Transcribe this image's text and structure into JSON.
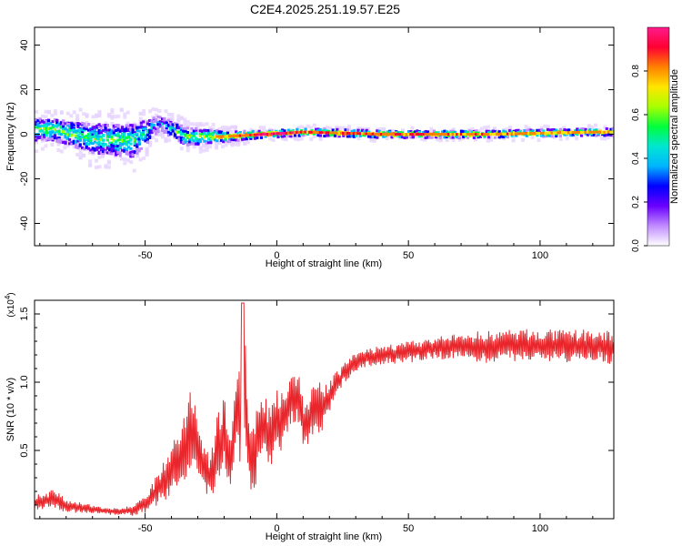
{
  "title": "C2E4.2025.251.19.57.E25",
  "colors": {
    "line": "#e8262b",
    "axis": "#000000",
    "colormap": [
      "#ffffff",
      "#c08bff",
      "#6a00ff",
      "#0000ff",
      "#00b4ff",
      "#00e6d2",
      "#00ff3c",
      "#a8ff00",
      "#ffe600",
      "#ff8000",
      "#ff0033",
      "#ff1a8c"
    ]
  },
  "chart_data": [
    {
      "type": "heatmap",
      "title": "C2E4.2025.251.19.57.E25",
      "xlabel": "Height of straight line (km)",
      "ylabel": "Frequency (Hz)",
      "xlim": [
        -92,
        128
      ],
      "ylim": [
        -50,
        48
      ],
      "xticks": [
        -50,
        0,
        50,
        100
      ],
      "xtick_labels": [
        "-50",
        "0",
        "50",
        "100"
      ],
      "yticks": [
        -40,
        -20,
        0,
        20,
        40
      ],
      "ytick_labels": [
        "-40",
        "-20",
        "0",
        "20",
        "40"
      ],
      "colorbar": {
        "label": "Normalized spectral amplitude",
        "range": [
          0,
          1
        ],
        "ticks": [
          0.0,
          0.2,
          0.4,
          0.6,
          0.8
        ],
        "tick_labels": [
          "0.0",
          "0.2",
          "0.4",
          "0.6",
          "0.8"
        ]
      },
      "description_points": [
        {
          "x": -85,
          "center_hz": 2,
          "spread_hz": 6,
          "amp": 0.6
        },
        {
          "x": -70,
          "center_hz": -2,
          "spread_hz": 8,
          "amp": 0.55
        },
        {
          "x": -55,
          "center_hz": -3,
          "spread_hz": 9,
          "amp": 0.55
        },
        {
          "x": -45,
          "center_hz": 5,
          "spread_hz": 4,
          "amp": 0.3
        },
        {
          "x": -35,
          "center_hz": -1,
          "spread_hz": 5,
          "amp": 0.6
        },
        {
          "x": -20,
          "center_hz": -1,
          "spread_hz": 3,
          "amp": 0.8
        },
        {
          "x": -5,
          "center_hz": 0,
          "spread_hz": 2,
          "amp": 1.0
        },
        {
          "x": 10,
          "center_hz": 1,
          "spread_hz": 2,
          "amp": 0.9
        },
        {
          "x": 40,
          "center_hz": 0,
          "spread_hz": 2,
          "amp": 0.9
        },
        {
          "x": 80,
          "center_hz": 0,
          "spread_hz": 2,
          "amp": 0.85
        },
        {
          "x": 120,
          "center_hz": 1,
          "spread_hz": 2,
          "amp": 0.8
        }
      ]
    },
    {
      "type": "line",
      "xlabel": "Height of straight line (km)",
      "ylabel": "SNR (10 * v/v)",
      "multiplier_label": "(x10",
      "multiplier_exp": "4",
      "multiplier_close": ")",
      "xlim": [
        -92,
        128
      ],
      "ylim": [
        0.0,
        1.6
      ],
      "xticks": [
        -50,
        0,
        50,
        100
      ],
      "xtick_labels": [
        "-50",
        "0",
        "50",
        "100"
      ],
      "yticks": [
        0.5,
        1.0,
        1.5
      ],
      "ytick_labels": [
        "0.5",
        "1.0",
        "1.5"
      ],
      "series": [
        {
          "name": "SNR",
          "x": [
            -92,
            -85,
            -80,
            -75,
            -70,
            -65,
            -60,
            -55,
            -50,
            -45,
            -40,
            -35,
            -32,
            -30,
            -27,
            -25,
            -22,
            -20,
            -17,
            -15,
            -13,
            -12,
            -11,
            -10,
            -8,
            -5,
            -3,
            0,
            3,
            5,
            8,
            10,
            12,
            15,
            18,
            20,
            25,
            30,
            35,
            40,
            50,
            60,
            70,
            80,
            90,
            100,
            110,
            120,
            128
          ],
          "values": [
            0.12,
            0.14,
            0.1,
            0.08,
            0.07,
            0.06,
            0.05,
            0.06,
            0.1,
            0.22,
            0.35,
            0.5,
            0.7,
            0.45,
            0.35,
            0.28,
            0.55,
            0.6,
            0.45,
            0.85,
            0.6,
            1.0,
            0.5,
            0.4,
            0.55,
            0.65,
            0.6,
            0.72,
            0.75,
            0.85,
            0.9,
            0.68,
            0.72,
            0.8,
            0.82,
            0.9,
            1.05,
            1.15,
            1.18,
            1.2,
            1.22,
            1.25,
            1.26,
            1.26,
            1.27,
            1.27,
            1.26,
            1.27,
            1.25
          ],
          "noise_amplitude": [
            0.05,
            0.08,
            0.05,
            0.04,
            0.03,
            0.03,
            0.03,
            0.04,
            0.06,
            0.12,
            0.18,
            0.25,
            0.3,
            0.2,
            0.18,
            0.18,
            0.3,
            0.3,
            0.25,
            0.35,
            0.3,
            0.45,
            0.3,
            0.25,
            0.3,
            0.25,
            0.25,
            0.25,
            0.25,
            0.25,
            0.25,
            0.2,
            0.2,
            0.2,
            0.18,
            0.12,
            0.08,
            0.07,
            0.07,
            0.07,
            0.08,
            0.08,
            0.1,
            0.12,
            0.12,
            0.12,
            0.12,
            0.12,
            0.12
          ],
          "color": "#e8262b"
        }
      ]
    }
  ]
}
